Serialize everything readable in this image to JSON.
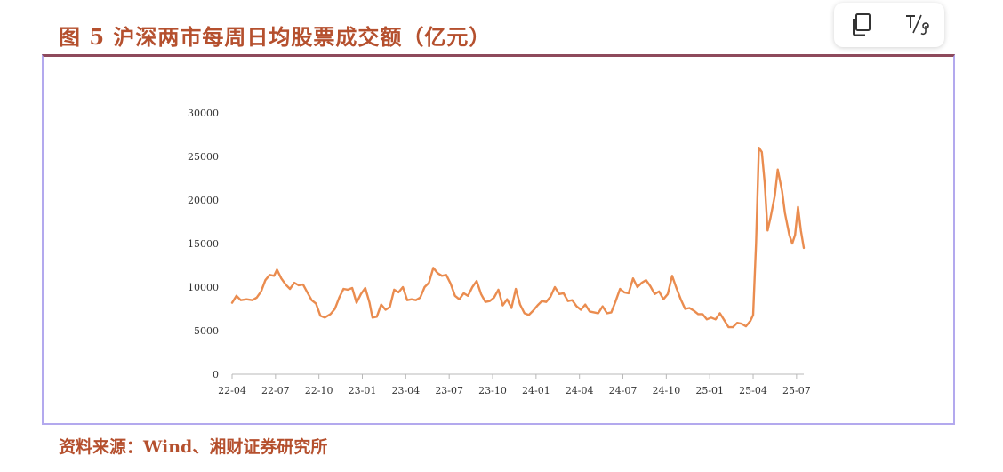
{
  "figure": {
    "title": "图 5  沪深两市每周日均股票成交额（亿元）",
    "source": "资料来源：Wind、湘财证券研究所"
  },
  "toolbar": {
    "items": [
      {
        "name": "copy-icon"
      },
      {
        "name": "text-size-icon"
      }
    ]
  },
  "colors": {
    "accent": "#b5502e",
    "line": "#ea8c4f",
    "frame_side": "#b3a9ee",
    "frame_top": "#8e4a5c"
  },
  "chart_data": {
    "type": "line",
    "title": "图 5  沪深两市每周日均股票成交额（亿元）",
    "xlabel": "",
    "ylabel": "",
    "ylim": [
      0,
      30000
    ],
    "yticks": [
      "0",
      "5000",
      "10000",
      "15000",
      "20000",
      "25000",
      "30000"
    ],
    "xticks": [
      "22-04",
      "22-07",
      "22-10",
      "23-01",
      "23-04",
      "23-07",
      "23-10",
      "24-01",
      "24-04",
      "24-07",
      "24-10",
      "25-01",
      "25-04",
      "25-07"
    ],
    "x_range": [
      0,
      39.5
    ],
    "grid": false,
    "legend": "none",
    "series": [
      {
        "name": "",
        "points": [
          [
            0.0,
            8200
          ],
          [
            0.3,
            9000
          ],
          [
            0.6,
            8500
          ],
          [
            1.0,
            8600
          ],
          [
            1.4,
            8500
          ],
          [
            1.7,
            8800
          ],
          [
            2.0,
            9500
          ],
          [
            2.3,
            10800
          ],
          [
            2.6,
            11400
          ],
          [
            2.9,
            11300
          ],
          [
            3.1,
            12000
          ],
          [
            3.4,
            11000
          ],
          [
            3.7,
            10300
          ],
          [
            4.0,
            9800
          ],
          [
            4.3,
            10500
          ],
          [
            4.6,
            10200
          ],
          [
            4.9,
            10300
          ],
          [
            5.2,
            9400
          ],
          [
            5.5,
            8500
          ],
          [
            5.8,
            8100
          ],
          [
            6.1,
            6700
          ],
          [
            6.4,
            6500
          ],
          [
            6.8,
            6900
          ],
          [
            7.1,
            7500
          ],
          [
            7.4,
            8800
          ],
          [
            7.7,
            9800
          ],
          [
            8.0,
            9700
          ],
          [
            8.3,
            9900
          ],
          [
            8.6,
            8200
          ],
          [
            8.9,
            9200
          ],
          [
            9.2,
            9900
          ],
          [
            9.5,
            8200
          ],
          [
            9.7,
            6500
          ],
          [
            10.0,
            6600
          ],
          [
            10.3,
            8000
          ],
          [
            10.6,
            7400
          ],
          [
            10.9,
            7700
          ],
          [
            11.2,
            9700
          ],
          [
            11.5,
            9400
          ],
          [
            11.8,
            10000
          ],
          [
            12.1,
            8500
          ],
          [
            12.4,
            8600
          ],
          [
            12.7,
            8500
          ],
          [
            13.0,
            8800
          ],
          [
            13.3,
            10000
          ],
          [
            13.6,
            10500
          ],
          [
            13.9,
            12200
          ],
          [
            14.2,
            11600
          ],
          [
            14.5,
            11300
          ],
          [
            14.8,
            11400
          ],
          [
            15.1,
            10400
          ],
          [
            15.4,
            9000
          ],
          [
            15.7,
            8600
          ],
          [
            16.0,
            9300
          ],
          [
            16.3,
            9000
          ],
          [
            16.6,
            10000
          ],
          [
            16.9,
            10700
          ],
          [
            17.2,
            9200
          ],
          [
            17.5,
            8300
          ],
          [
            17.8,
            8400
          ],
          [
            18.1,
            8800
          ],
          [
            18.4,
            9700
          ],
          [
            18.7,
            7900
          ],
          [
            19.0,
            8600
          ],
          [
            19.3,
            7600
          ],
          [
            19.6,
            9800
          ],
          [
            19.9,
            8000
          ],
          [
            20.2,
            7000
          ],
          [
            20.5,
            6800
          ],
          [
            20.8,
            7300
          ],
          [
            21.1,
            7900
          ],
          [
            21.4,
            8400
          ],
          [
            21.7,
            8300
          ],
          [
            22.0,
            8900
          ],
          [
            22.3,
            10000
          ],
          [
            22.6,
            9200
          ],
          [
            22.9,
            9300
          ],
          [
            23.2,
            8400
          ],
          [
            23.5,
            8500
          ],
          [
            23.8,
            7800
          ],
          [
            24.1,
            7400
          ],
          [
            24.4,
            8000
          ],
          [
            24.7,
            7200
          ],
          [
            25.0,
            7100
          ],
          [
            25.3,
            7000
          ],
          [
            25.6,
            7800
          ],
          [
            25.9,
            7000
          ],
          [
            26.2,
            7100
          ],
          [
            26.5,
            8400
          ],
          [
            26.8,
            9800
          ],
          [
            27.1,
            9400
          ],
          [
            27.4,
            9300
          ],
          [
            27.7,
            11000
          ],
          [
            28.0,
            10000
          ],
          [
            28.3,
            10500
          ],
          [
            28.6,
            10800
          ],
          [
            28.9,
            10100
          ],
          [
            29.2,
            9200
          ],
          [
            29.5,
            9500
          ],
          [
            29.8,
            8600
          ],
          [
            30.1,
            9200
          ],
          [
            30.4,
            11300
          ],
          [
            30.7,
            9900
          ],
          [
            31.0,
            8600
          ],
          [
            31.3,
            7500
          ],
          [
            31.6,
            7600
          ],
          [
            31.9,
            7300
          ],
          [
            32.2,
            6900
          ],
          [
            32.5,
            6900
          ],
          [
            32.8,
            6300
          ],
          [
            33.1,
            6500
          ],
          [
            33.4,
            6300
          ],
          [
            33.7,
            7000
          ],
          [
            34.0,
            6200
          ],
          [
            34.3,
            5400
          ],
          [
            34.6,
            5400
          ],
          [
            34.9,
            5900
          ],
          [
            35.2,
            5800
          ],
          [
            35.5,
            5500
          ],
          [
            35.8,
            6100
          ],
          [
            36.0,
            6800
          ],
          [
            36.2,
            15000
          ],
          [
            36.4,
            26000
          ],
          [
            36.6,
            25500
          ],
          [
            36.8,
            22000
          ],
          [
            37.0,
            16500
          ],
          [
            37.2,
            18000
          ],
          [
            37.5,
            20500
          ],
          [
            37.7,
            23500
          ],
          [
            38.0,
            21000
          ],
          [
            38.2,
            18500
          ],
          [
            38.5,
            16000
          ],
          [
            38.7,
            15000
          ],
          [
            38.9,
            16000
          ],
          [
            39.1,
            19200
          ],
          [
            39.3,
            16500
          ],
          [
            39.5,
            14500
          ]
        ]
      }
    ]
  }
}
